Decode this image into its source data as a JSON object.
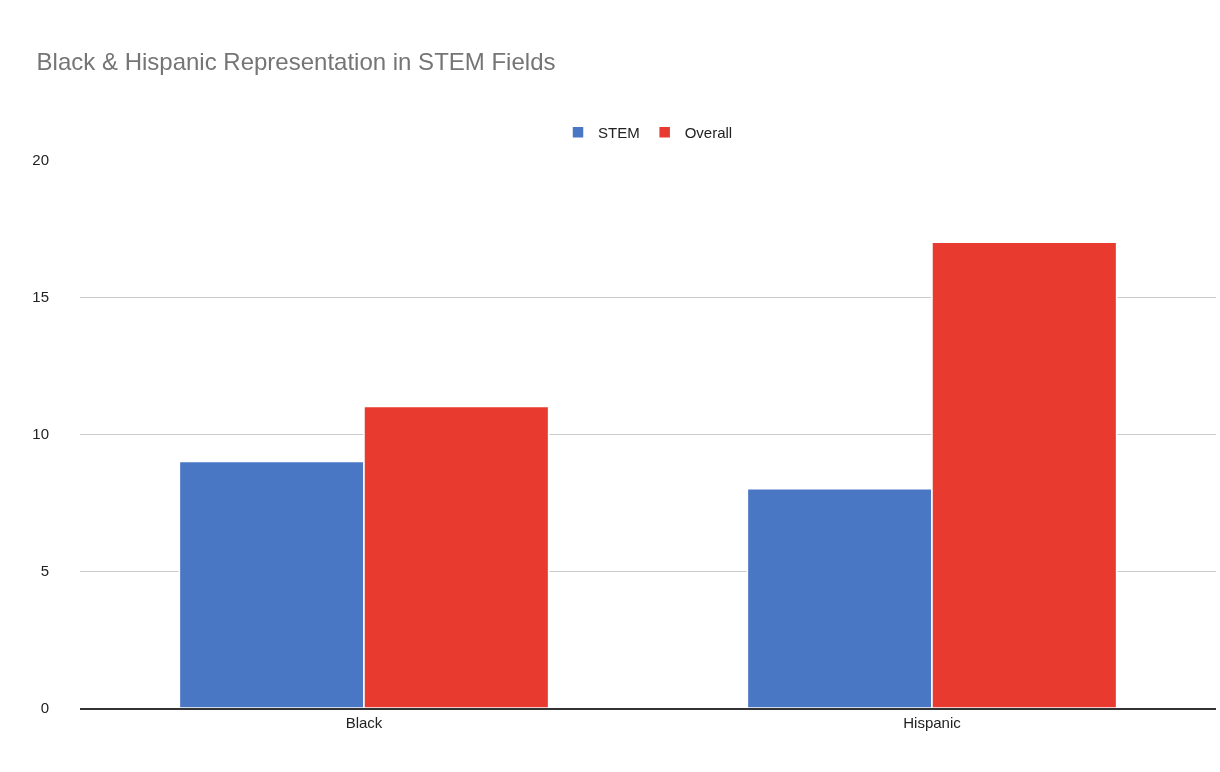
{
  "chart_data": {
    "type": "bar",
    "title": "Black & Hispanic Representation in STEM Fields",
    "categories": [
      "Black",
      "Hispanic"
    ],
    "series": [
      {
        "name": "STEM",
        "color": "#4a77c4",
        "values": [
          9,
          8
        ]
      },
      {
        "name": "Overall",
        "color": "#e83a2e",
        "values": [
          11,
          17
        ]
      }
    ],
    "ylim": [
      0,
      20
    ],
    "yticks": [
      0,
      5,
      10,
      15,
      20
    ],
    "grid": "y",
    "legend": "top"
  }
}
